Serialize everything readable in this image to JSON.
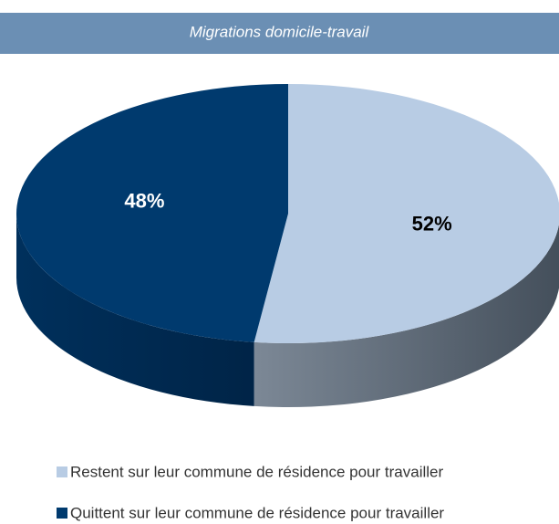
{
  "chart_data": {
    "type": "pie",
    "title": "Migrations domicile-travail",
    "categories": [
      "Restent sur leur commune de résidence pour travailler",
      "Quittent sur leur commune de résidence pour travailler"
    ],
    "values": [
      52,
      48
    ],
    "value_labels": [
      "52%",
      "48%"
    ],
    "colors": [
      "#b8cce4",
      "#003a6e"
    ],
    "legend": "bottom"
  }
}
